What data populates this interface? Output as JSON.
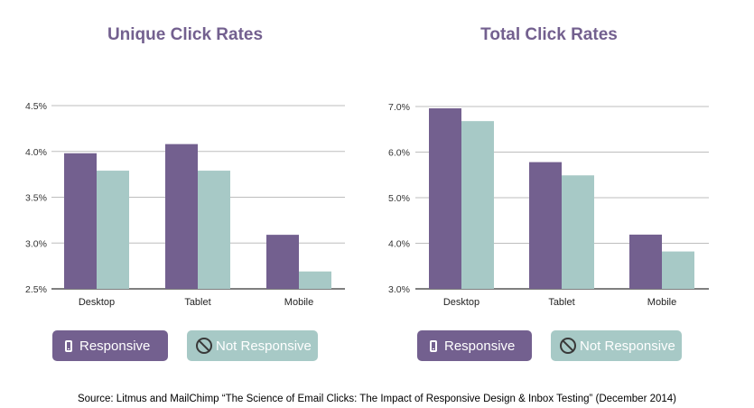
{
  "colors": {
    "responsive": "#73608f",
    "not_responsive": "#a7c9c6",
    "title": "#73608f",
    "grid": "#bdbdbd",
    "axis": "#555555"
  },
  "legend": {
    "responsive_label": "Responsive",
    "responsive_icon": "phone-icon",
    "not_responsive_label": "Not Responsive",
    "not_responsive_icon": "no-symbol-icon"
  },
  "source": "Source: Litmus and MailChimp “The Science of Email Clicks: The Impact of Responsive Design & Inbox Testing” (December 2014)",
  "chart_data": [
    {
      "type": "bar",
      "title": "Unique Click Rates",
      "categories": [
        "Desktop",
        "Tablet",
        "Mobile"
      ],
      "ylim": [
        2.5,
        4.5
      ],
      "yticks": [
        "2.5%",
        "3.0%",
        "3.5%",
        "4.0%",
        "4.5%"
      ],
      "ytick_values": [
        2.5,
        3.0,
        3.5,
        4.0,
        4.5
      ],
      "grid": true,
      "legend_position": "bottom",
      "series": [
        {
          "name": "Responsive",
          "values": [
            3.98,
            4.08,
            3.09
          ]
        },
        {
          "name": "Not Responsive",
          "values": [
            3.79,
            3.79,
            2.69
          ]
        }
      ]
    },
    {
      "type": "bar",
      "title": "Total Click Rates",
      "categories": [
        "Desktop",
        "Tablet",
        "Mobile"
      ],
      "ylim": [
        3.0,
        7.0
      ],
      "yticks": [
        "3.0%",
        "4.0%",
        "5.0%",
        "6.0%",
        "7.0%"
      ],
      "ytick_values": [
        3.0,
        4.0,
        5.0,
        6.0,
        7.0
      ],
      "grid": true,
      "legend_position": "bottom",
      "series": [
        {
          "name": "Responsive",
          "values": [
            6.96,
            5.78,
            4.19
          ]
        },
        {
          "name": "Not Responsive",
          "values": [
            6.68,
            5.49,
            3.82
          ]
        }
      ]
    }
  ]
}
